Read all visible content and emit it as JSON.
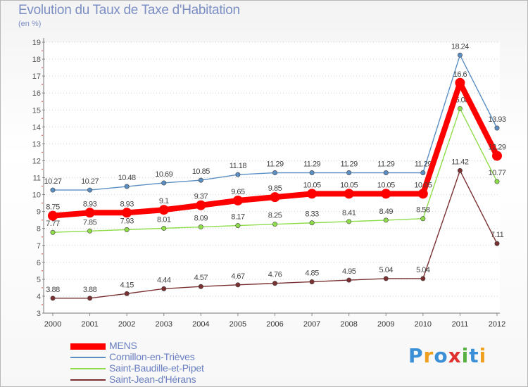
{
  "title": "Evolution du Taux de Taxe d'Habitation",
  "unit": "(en %)",
  "logo": {
    "text": "Proxiti",
    "letters": [
      {
        "ch": "P",
        "color": "#3b8fd6"
      },
      {
        "ch": "r",
        "color": "#f0a020"
      },
      {
        "ch": "o",
        "color": "#3b8fd6"
      },
      {
        "ch": "x",
        "color": "#e03030"
      },
      {
        "ch": "i",
        "color": "#55b040"
      },
      {
        "ch": "t",
        "color": "#3b8fd6"
      },
      {
        "ch": "i",
        "color": "#f0a020"
      }
    ]
  },
  "chart_data": {
    "type": "line",
    "title": "Evolution du Taux de Taxe d'Habitation",
    "ylabel": "(en %)",
    "xlabel": "",
    "ylim": [
      3,
      19
    ],
    "yticks": [
      3,
      4,
      5,
      6,
      7,
      8,
      9,
      10,
      11,
      12,
      13,
      14,
      15,
      16,
      17,
      18,
      19
    ],
    "x": [
      "2000",
      "2001",
      "2002",
      "2003",
      "2004",
      "2005",
      "2006",
      "2007",
      "2008",
      "2009",
      "2010",
      "2011",
      "2012"
    ],
    "grid": "horizontal dotted",
    "legend": "bottom-left",
    "series": [
      {
        "name": "Cornillon-en-Trièves",
        "color": "#5b8fc4",
        "emphasis": false,
        "values": [
          10.27,
          10.27,
          10.48,
          10.69,
          10.85,
          11.18,
          11.29,
          11.29,
          11.29,
          11.29,
          11.29,
          18.24,
          13.93
        ],
        "labels": [
          "10.27",
          "10.27",
          "10.48",
          "10.69",
          "10.85",
          "11.18",
          "11.29",
          "11.29",
          "11.29",
          "11.29",
          "11.29",
          "18.24",
          "13.93"
        ]
      },
      {
        "name": "Saint-Baudille-et-Pipet",
        "color": "#8fdc4a",
        "emphasis": false,
        "values": [
          7.77,
          7.85,
          7.93,
          8.01,
          8.09,
          8.17,
          8.25,
          8.33,
          8.41,
          8.49,
          8.58,
          15.08,
          10.77
        ],
        "labels": [
          "7.77",
          "7.85",
          "7.93",
          "8.01",
          "8.09",
          "8.17",
          "8.25",
          "8.33",
          "8.41",
          "8.49",
          "8.58",
          "15.08",
          "10.77"
        ]
      },
      {
        "name": "Saint-Jean-d'Hérans",
        "color": "#7a2f30",
        "emphasis": false,
        "values": [
          3.88,
          3.88,
          4.15,
          4.44,
          4.57,
          4.67,
          4.76,
          4.85,
          4.95,
          5.04,
          5.04,
          11.42,
          7.11
        ],
        "labels": [
          "3.88",
          "3.88",
          "4.15",
          "4.44",
          "4.57",
          "4.67",
          "4.76",
          "4.85",
          "4.95",
          "5.04",
          "5.04",
          "11.42",
          "7.11"
        ]
      },
      {
        "name": "MENS",
        "color": "#ff0000",
        "emphasis": true,
        "values": [
          8.75,
          8.93,
          8.93,
          9.1,
          9.37,
          9.65,
          9.85,
          10.05,
          10.05,
          10.05,
          10.05,
          16.6,
          12.29
        ],
        "labels": [
          "8.75",
          "8.93",
          "8.93",
          "9.1",
          "9.37",
          "9.65",
          "9.85",
          "10.05",
          "10.05",
          "10.05",
          "10.05",
          "16.6",
          "12.29"
        ]
      }
    ],
    "legend_order": [
      "MENS",
      "Cornillon-en-Trièves",
      "Saint-Baudille-et-Pipet",
      "Saint-Jean-d'Hérans"
    ]
  }
}
